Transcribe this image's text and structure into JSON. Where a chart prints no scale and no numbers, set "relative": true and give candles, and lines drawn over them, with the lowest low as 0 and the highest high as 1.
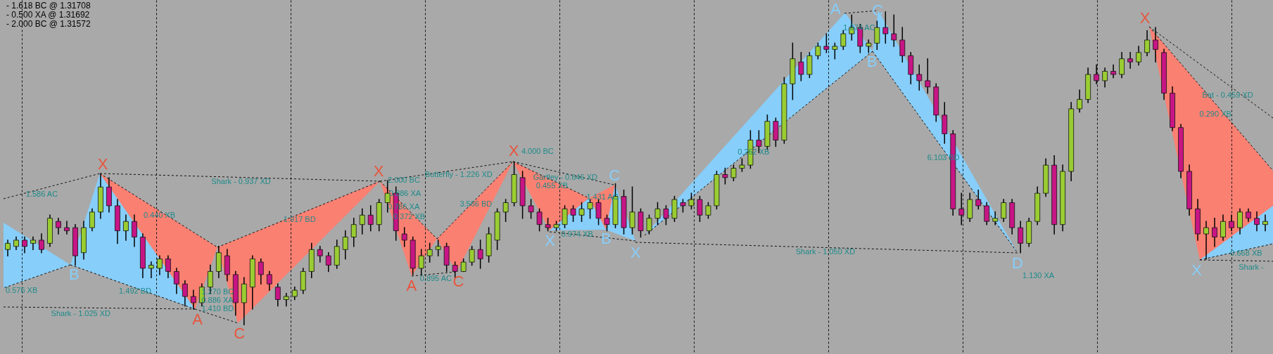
{
  "chart_data": {
    "type": "candlestick",
    "relative": true,
    "categories": [
      null,
      null,
      null,
      null,
      null,
      null,
      null,
      null,
      null,
      null,
      null,
      null,
      null,
      null,
      null,
      null,
      null,
      null,
      null,
      null,
      null,
      null,
      null,
      null,
      null,
      null,
      null,
      null,
      null,
      null,
      null,
      null,
      null,
      null,
      null,
      null,
      null,
      null,
      null,
      null,
      null,
      null,
      null,
      null,
      null,
      null,
      null,
      null,
      null,
      null,
      null,
      null,
      null,
      null,
      null,
      null,
      null,
      null,
      null,
      null,
      null,
      null,
      null,
      null,
      null,
      null,
      null,
      null,
      null,
      null,
      null,
      null,
      null,
      null,
      null,
      null,
      null,
      null,
      null,
      null,
      null,
      null,
      null,
      null,
      null,
      null,
      null,
      null,
      null,
      null,
      null,
      null,
      null,
      null,
      null,
      null,
      null,
      null,
      null,
      null,
      null,
      null,
      null,
      null,
      null,
      null,
      null,
      null,
      null,
      null,
      null,
      null,
      null,
      null,
      null,
      null,
      null,
      null,
      null,
      null,
      null,
      null,
      null,
      null,
      null,
      null,
      null,
      null,
      null,
      null,
      null,
      null,
      null,
      null,
      null,
      null,
      null,
      null,
      null,
      null,
      null,
      null,
      null,
      null,
      null,
      null,
      null,
      null,
      null,
      null
    ],
    "ohlc": [
      [
        0.24,
        0.27,
        0.22,
        0.26
      ],
      [
        0.25,
        0.28,
        0.24,
        0.27
      ],
      [
        0.27,
        0.28,
        0.23,
        0.25
      ],
      [
        0.26,
        0.28,
        0.24,
        0.27
      ],
      [
        0.27,
        0.29,
        0.23,
        0.24
      ],
      [
        0.26,
        0.35,
        0.25,
        0.34
      ],
      [
        0.33,
        0.34,
        0.29,
        0.31
      ],
      [
        0.31,
        0.33,
        0.29,
        0.3
      ],
      [
        0.31,
        0.32,
        0.19,
        0.22
      ],
      [
        0.23,
        0.33,
        0.21,
        0.31
      ],
      [
        0.31,
        0.37,
        0.3,
        0.36
      ],
      [
        0.36,
        0.48,
        0.34,
        0.44
      ],
      [
        0.44,
        0.47,
        0.36,
        0.38
      ],
      [
        0.38,
        0.4,
        0.26,
        0.3
      ],
      [
        0.3,
        0.35,
        0.27,
        0.33
      ],
      [
        0.33,
        0.35,
        0.25,
        0.28
      ],
      [
        0.28,
        0.29,
        0.15,
        0.18
      ],
      [
        0.18,
        0.2,
        0.15,
        0.19
      ],
      [
        0.18,
        0.22,
        0.16,
        0.21
      ],
      [
        0.21,
        0.22,
        0.15,
        0.17
      ],
      [
        0.17,
        0.18,
        0.1,
        0.13
      ],
      [
        0.13,
        0.14,
        0.06,
        0.09
      ],
      [
        0.09,
        0.11,
        0.05,
        0.07
      ],
      [
        0.07,
        0.13,
        0.06,
        0.12
      ],
      [
        0.12,
        0.19,
        0.1,
        0.17
      ],
      [
        0.17,
        0.25,
        0.15,
        0.23
      ],
      [
        0.22,
        0.24,
        0.14,
        0.16
      ],
      [
        0.16,
        0.17,
        0.03,
        0.07
      ],
      [
        0.07,
        0.15,
        0.0,
        0.13
      ],
      [
        0.12,
        0.22,
        0.05,
        0.21
      ],
      [
        0.2,
        0.21,
        0.13,
        0.16
      ],
      [
        0.16,
        0.17,
        0.11,
        0.13
      ],
      [
        0.12,
        0.13,
        0.06,
        0.08
      ],
      [
        0.08,
        0.1,
        0.06,
        0.09
      ],
      [
        0.09,
        0.12,
        0.08,
        0.11
      ],
      [
        0.11,
        0.18,
        0.1,
        0.17
      ],
      [
        0.17,
        0.26,
        0.15,
        0.24
      ],
      [
        0.24,
        0.25,
        0.2,
        0.22
      ],
      [
        0.22,
        0.23,
        0.17,
        0.19
      ],
      [
        0.19,
        0.27,
        0.18,
        0.25
      ],
      [
        0.24,
        0.3,
        0.21,
        0.28
      ],
      [
        0.28,
        0.34,
        0.25,
        0.32
      ],
      [
        0.32,
        0.37,
        0.29,
        0.35
      ],
      [
        0.35,
        0.38,
        0.3,
        0.32
      ],
      [
        0.32,
        0.4,
        0.3,
        0.39
      ],
      [
        0.39,
        0.46,
        0.36,
        0.42
      ],
      [
        0.42,
        0.44,
        0.27,
        0.3
      ],
      [
        0.29,
        0.31,
        0.25,
        0.27
      ],
      [
        0.27,
        0.28,
        0.16,
        0.18
      ],
      [
        0.18,
        0.24,
        0.16,
        0.22
      ],
      [
        0.22,
        0.26,
        0.2,
        0.24
      ],
      [
        0.24,
        0.27,
        0.22,
        0.25
      ],
      [
        0.25,
        0.26,
        0.17,
        0.19
      ],
      [
        0.19,
        0.2,
        0.15,
        0.17
      ],
      [
        0.17,
        0.21,
        0.17,
        0.2
      ],
      [
        0.2,
        0.25,
        0.19,
        0.24
      ],
      [
        0.24,
        0.27,
        0.18,
        0.21
      ],
      [
        0.22,
        0.31,
        0.2,
        0.29
      ],
      [
        0.27,
        0.37,
        0.24,
        0.36
      ],
      [
        0.36,
        0.4,
        0.33,
        0.39
      ],
      [
        0.39,
        0.52,
        0.38,
        0.48
      ],
      [
        0.47,
        0.49,
        0.34,
        0.38
      ],
      [
        0.38,
        0.4,
        0.34,
        0.36
      ],
      [
        0.36,
        0.37,
        0.3,
        0.32
      ],
      [
        0.32,
        0.34,
        0.3,
        0.31
      ],
      [
        0.31,
        0.33,
        0.3,
        0.32
      ],
      [
        0.32,
        0.38,
        0.31,
        0.37
      ],
      [
        0.37,
        0.38,
        0.33,
        0.35
      ],
      [
        0.35,
        0.39,
        0.33,
        0.37
      ],
      [
        0.37,
        0.4,
        0.34,
        0.39
      ],
      [
        0.39,
        0.4,
        0.32,
        0.34
      ],
      [
        0.34,
        0.35,
        0.3,
        0.32
      ],
      [
        0.32,
        0.45,
        0.31,
        0.41
      ],
      [
        0.41,
        0.43,
        0.29,
        0.31
      ],
      [
        0.31,
        0.44,
        0.29,
        0.36
      ],
      [
        0.36,
        0.37,
        0.28,
        0.3
      ],
      [
        0.3,
        0.35,
        0.29,
        0.34
      ],
      [
        0.34,
        0.39,
        0.32,
        0.37
      ],
      [
        0.37,
        0.38,
        0.32,
        0.34
      ],
      [
        0.34,
        0.41,
        0.33,
        0.4
      ],
      [
        0.39,
        0.4,
        0.36,
        0.38
      ],
      [
        0.38,
        0.42,
        0.37,
        0.4
      ],
      [
        0.4,
        0.41,
        0.33,
        0.35
      ],
      [
        0.35,
        0.39,
        0.34,
        0.38
      ],
      [
        0.38,
        0.49,
        0.37,
        0.48
      ],
      [
        0.48,
        0.5,
        0.45,
        0.47
      ],
      [
        0.47,
        0.51,
        0.46,
        0.5
      ],
      [
        0.5,
        0.53,
        0.49,
        0.51
      ],
      [
        0.51,
        0.62,
        0.5,
        0.59
      ],
      [
        0.59,
        0.62,
        0.55,
        0.57
      ],
      [
        0.57,
        0.67,
        0.56,
        0.65
      ],
      [
        0.65,
        0.66,
        0.57,
        0.59
      ],
      [
        0.59,
        0.79,
        0.58,
        0.77
      ],
      [
        0.77,
        0.9,
        0.72,
        0.85
      ],
      [
        0.84,
        0.87,
        0.78,
        0.8
      ],
      [
        0.8,
        0.87,
        0.79,
        0.86
      ],
      [
        0.86,
        0.9,
        0.85,
        0.89
      ],
      [
        0.89,
        0.93,
        0.87,
        0.88
      ],
      [
        0.88,
        0.9,
        0.85,
        0.89
      ],
      [
        0.89,
        0.94,
        0.88,
        0.93
      ],
      [
        0.93,
        0.99,
        0.91,
        0.95
      ],
      [
        0.95,
        0.96,
        0.87,
        0.89
      ],
      [
        0.89,
        0.91,
        0.87,
        0.9
      ],
      [
        0.9,
        0.97,
        0.88,
        0.95
      ],
      [
        0.95,
        1.0,
        0.9,
        0.93
      ],
      [
        0.93,
        0.99,
        0.89,
        0.91
      ],
      [
        0.91,
        0.95,
        0.84,
        0.86
      ],
      [
        0.86,
        0.87,
        0.77,
        0.8
      ],
      [
        0.8,
        0.83,
        0.75,
        0.78
      ],
      [
        0.78,
        0.85,
        0.74,
        0.76
      ],
      [
        0.76,
        0.77,
        0.65,
        0.67
      ],
      [
        0.67,
        0.71,
        0.58,
        0.61
      ],
      [
        0.61,
        0.62,
        0.35,
        0.37
      ],
      [
        0.37,
        0.42,
        0.32,
        0.35
      ],
      [
        0.34,
        0.42,
        0.33,
        0.4
      ],
      [
        0.4,
        0.43,
        0.37,
        0.38
      ],
      [
        0.38,
        0.39,
        0.32,
        0.33
      ],
      [
        0.33,
        0.36,
        0.32,
        0.34
      ],
      [
        0.34,
        0.4,
        0.33,
        0.39
      ],
      [
        0.39,
        0.4,
        0.29,
        0.31
      ],
      [
        0.31,
        0.33,
        0.23,
        0.26
      ],
      [
        0.26,
        0.34,
        0.25,
        0.33
      ],
      [
        0.33,
        0.44,
        0.32,
        0.42
      ],
      [
        0.42,
        0.53,
        0.41,
        0.51
      ],
      [
        0.51,
        0.54,
        0.29,
        0.32
      ],
      [
        0.32,
        0.51,
        0.3,
        0.49
      ],
      [
        0.49,
        0.71,
        0.46,
        0.69
      ],
      [
        0.69,
        0.75,
        0.68,
        0.72
      ],
      [
        0.72,
        0.82,
        0.71,
        0.8
      ],
      [
        0.8,
        0.83,
        0.77,
        0.78
      ],
      [
        0.78,
        0.82,
        0.76,
        0.81
      ],
      [
        0.81,
        0.83,
        0.79,
        0.8
      ],
      [
        0.8,
        0.87,
        0.79,
        0.85
      ],
      [
        0.85,
        0.87,
        0.82,
        0.84
      ],
      [
        0.84,
        0.89,
        0.83,
        0.87
      ],
      [
        0.87,
        0.94,
        0.86,
        0.91
      ],
      [
        0.91,
        0.95,
        0.84,
        0.88
      ],
      [
        0.87,
        0.88,
        0.72,
        0.74
      ],
      [
        0.74,
        0.76,
        0.62,
        0.63
      ],
      [
        0.63,
        0.64,
        0.47,
        0.49
      ],
      [
        0.49,
        0.51,
        0.35,
        0.37
      ],
      [
        0.37,
        0.4,
        0.27,
        0.29
      ],
      [
        0.29,
        0.33,
        0.21,
        0.31
      ],
      [
        0.31,
        0.34,
        0.25,
        0.28
      ],
      [
        0.28,
        0.35,
        0.27,
        0.33
      ],
      [
        0.33,
        0.35,
        0.3,
        0.31
      ],
      [
        0.31,
        0.37,
        0.29,
        0.36
      ],
      [
        0.36,
        0.37,
        0.33,
        0.34
      ],
      [
        0.34,
        0.36,
        0.3,
        0.32
      ],
      [
        0.32,
        0.35,
        0.3,
        0.33
      ]
    ],
    "colors": [
      "#9acd32",
      "#9acd32",
      "#c71585",
      "#9acd32",
      "#c71585",
      "#9acd32",
      "#c71585",
      "#c71585",
      "#c71585",
      "#9acd32",
      "#9acd32",
      "#9acd32",
      "#c71585",
      "#c71585",
      "#9acd32",
      "#c71585",
      "#c71585",
      "#9acd32",
      "#9acd32",
      "#c71585",
      "#c71585",
      "#c71585",
      "#c71585",
      "#9acd32",
      "#9acd32",
      "#9acd32",
      "#c71585",
      "#c71585",
      "#9acd32",
      "#9acd32",
      "#c71585",
      "#c71585",
      "#c71585",
      "#9acd32",
      "#9acd32",
      "#9acd32",
      "#9acd32",
      "#c71585",
      "#c71585",
      "#9acd32",
      "#9acd32",
      "#9acd32",
      "#9acd32",
      "#c71585",
      "#9acd32",
      "#9acd32",
      "#c71585",
      "#c71585",
      "#c71585",
      "#9acd32",
      "#9acd32",
      "#9acd32",
      "#c71585",
      "#c71585",
      "#9acd32",
      "#9acd32",
      "#c71585",
      "#9acd32",
      "#9acd32",
      "#9acd32",
      "#9acd32",
      "#c71585",
      "#c71585",
      "#c71585",
      "#c71585",
      "#9acd32",
      "#9acd32",
      "#c71585",
      "#9acd32",
      "#9acd32",
      "#c71585",
      "#c71585",
      "#9acd32",
      "#c71585",
      "#9acd32",
      "#c71585",
      "#9acd32",
      "#9acd32",
      "#c71585",
      "#9acd32",
      "#c71585",
      "#9acd32",
      "#c71585",
      "#9acd32",
      "#9acd32",
      "#c71585",
      "#9acd32",
      "#9acd32",
      "#9acd32",
      "#c71585",
      "#9acd32",
      "#c71585",
      "#9acd32",
      "#9acd32",
      "#c71585",
      "#9acd32",
      "#9acd32",
      "#c71585",
      "#9acd32",
      "#9acd32",
      "#9acd32",
      "#c71585",
      "#9acd32",
      "#9acd32",
      "#c71585",
      "#c71585",
      "#c71585",
      "#c71585",
      "#c71585",
      "#c71585",
      "#c71585",
      "#c71585",
      "#c71585",
      "#c71585",
      "#9acd32",
      "#c71585",
      "#c71585",
      "#9acd32",
      "#9acd32",
      "#c71585",
      "#c71585",
      "#9acd32",
      "#9acd32",
      "#9acd32",
      "#c71585",
      "#9acd32",
      "#9acd32",
      "#9acd32",
      "#9acd32",
      "#c71585",
      "#9acd32",
      "#c71585",
      "#9acd32",
      "#c71585",
      "#9acd32",
      "#9acd32",
      "#c71585",
      "#c71585",
      "#c71585",
      "#c71585",
      "#c71585",
      "#c71585",
      "#9acd32",
      "#c71585",
      "#9acd32",
      "#c71585",
      "#9acd32",
      "#c71585",
      "#c71585",
      "#9acd32"
    ],
    "annotations": [
      "- 1.618 BC @ 1.31708",
      "- 0.500 XA @ 1.31692",
      "- 2.000 BC @ 1.31572",
      "1.586 AC",
      "0.440 XB",
      "0.576 XB",
      "1.492 BD",
      "Shark - 1.025 XD",
      "Shark - 0.937 XD",
      "1.917 BD",
      "2.000 BC",
      "0.886 XA",
      "0.786 XA",
      "0.372 XB",
      "Butterfly - 1.226 XD",
      "0.895 AC",
      "3.566 BD",
      "4.000 BC",
      "0.455 XB",
      "1.431 AC",
      "0.974 XB",
      "Gartley - 0.646 XD",
      "0.262 XB",
      "Shark - 1.050 XD",
      "1.074 AC",
      "6.103 BD",
      "1.130 XA",
      "Bat - 0.459 XD",
      "0.290 XB",
      "0.668 XB",
      "Shark -",
      "1.270 BC",
      "0.886 XA",
      "1.410 BD",
      "X",
      "B",
      "A",
      "C",
      "X",
      "A",
      "C",
      "X",
      "X",
      "B",
      "C",
      "X",
      "A",
      "C",
      "B",
      "D",
      "X",
      "X"
    ]
  }
}
